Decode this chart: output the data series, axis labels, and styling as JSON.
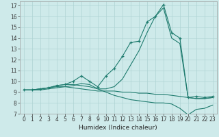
{
  "xlabel": "Humidex (Indice chaleur)",
  "bg_color": "#ceeaea",
  "grid_color": "#afd4d4",
  "line_color": "#1e7b6e",
  "xlim": [
    -0.5,
    23.5
  ],
  "ylim": [
    7,
    17.4
  ],
  "xticks": [
    0,
    1,
    2,
    3,
    4,
    5,
    6,
    7,
    8,
    9,
    10,
    11,
    12,
    13,
    14,
    15,
    16,
    17,
    18,
    19,
    20,
    21,
    22,
    23
  ],
  "yticks": [
    7,
    8,
    9,
    10,
    11,
    12,
    13,
    14,
    15,
    16,
    17
  ],
  "lines": [
    {
      "x": [
        0,
        1,
        2,
        3,
        4,
        5,
        6,
        7,
        8,
        9,
        10,
        11,
        12,
        13,
        14,
        15,
        16,
        17,
        18,
        19,
        20,
        21,
        22,
        23
      ],
      "y": [
        9.2,
        9.2,
        9.3,
        9.4,
        9.6,
        9.7,
        10.0,
        10.5,
        10.0,
        9.5,
        10.5,
        11.2,
        12.3,
        13.6,
        13.7,
        15.5,
        16.0,
        17.1,
        14.5,
        14.0,
        8.5,
        8.6,
        8.5,
        8.6
      ],
      "marker": true
    },
    {
      "x": [
        0,
        1,
        2,
        3,
        4,
        5,
        6,
        7,
        8,
        9,
        10,
        11,
        12,
        13,
        14,
        15,
        16,
        17,
        18,
        19,
        20,
        21,
        22,
        23
      ],
      "y": [
        9.2,
        9.2,
        9.3,
        9.4,
        9.5,
        9.5,
        9.4,
        9.3,
        9.2,
        9.1,
        9.1,
        9.1,
        9.0,
        9.0,
        8.9,
        8.9,
        8.8,
        8.8,
        8.7,
        8.6,
        8.5,
        8.4,
        8.4,
        8.5
      ],
      "marker": false
    },
    {
      "x": [
        0,
        1,
        2,
        3,
        4,
        5,
        6,
        7,
        8,
        9,
        10,
        11,
        12,
        13,
        14,
        15,
        16,
        17,
        18,
        19,
        20,
        21,
        22,
        23
      ],
      "y": [
        9.2,
        9.2,
        9.3,
        9.4,
        9.6,
        9.7,
        9.7,
        9.6,
        9.5,
        9.3,
        9.3,
        9.5,
        10.2,
        11.5,
        12.8,
        14.5,
        16.0,
        16.8,
        14.0,
        13.5,
        8.5,
        8.4,
        8.4,
        8.5
      ],
      "marker": false
    },
    {
      "x": [
        0,
        1,
        2,
        3,
        4,
        5,
        6,
        7,
        8,
        9,
        10,
        11,
        12,
        13,
        14,
        15,
        16,
        17,
        18,
        19,
        20,
        21,
        22,
        23
      ],
      "y": [
        9.2,
        9.2,
        9.2,
        9.3,
        9.4,
        9.5,
        9.6,
        9.8,
        9.7,
        9.3,
        9.0,
        8.7,
        8.5,
        8.3,
        8.2,
        8.1,
        8.0,
        8.0,
        7.9,
        7.5,
        6.9,
        7.4,
        7.5,
        7.8
      ],
      "marker": false
    }
  ],
  "tick_fontsize": 5.5,
  "xlabel_fontsize": 6.5
}
